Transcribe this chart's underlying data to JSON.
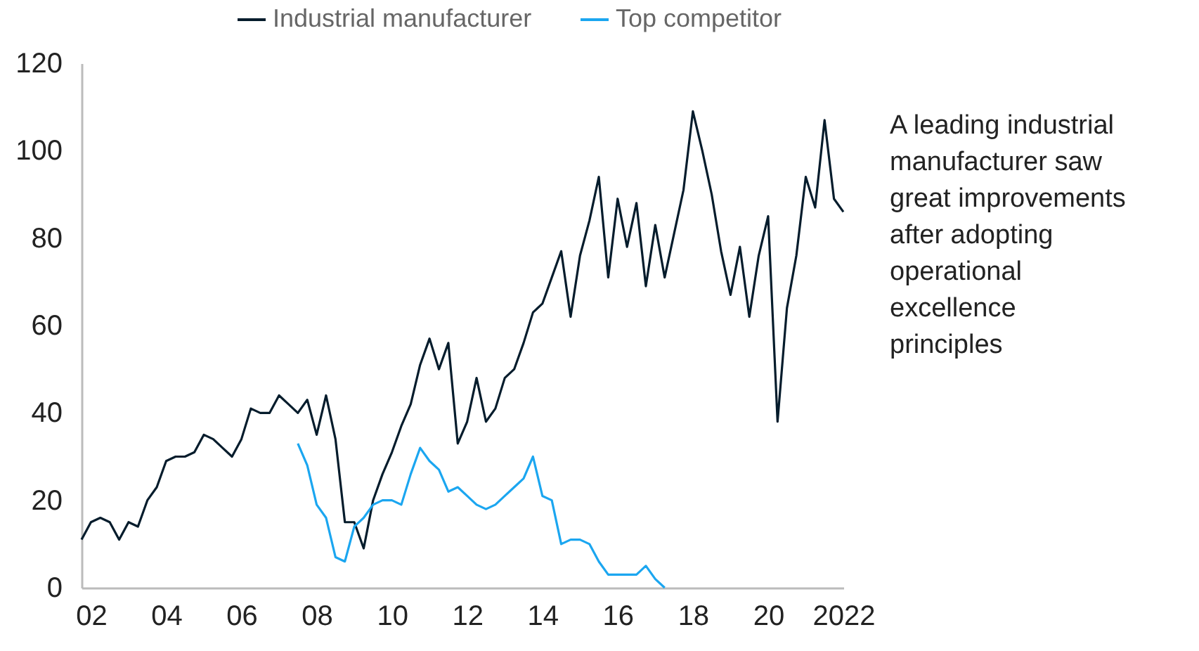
{
  "chart_data": {
    "type": "line",
    "xlim": [
      2001.75,
      2022
    ],
    "ylim": [
      0,
      120
    ],
    "yticks": [
      0,
      20,
      40,
      60,
      80,
      100,
      120
    ],
    "xticks": [
      {
        "value": 2002,
        "label": "02"
      },
      {
        "value": 2004,
        "label": "04"
      },
      {
        "value": 2006,
        "label": "06"
      },
      {
        "value": 2008,
        "label": "08"
      },
      {
        "value": 2010,
        "label": "10"
      },
      {
        "value": 2012,
        "label": "12"
      },
      {
        "value": 2014,
        "label": "14"
      },
      {
        "value": 2016,
        "label": "16"
      },
      {
        "value": 2018,
        "label": "18"
      },
      {
        "value": 2020,
        "label": "20"
      },
      {
        "value": 2022,
        "label": "2022"
      }
    ],
    "grid": false,
    "legend": "top",
    "marker": "none",
    "line_style": "solid",
    "annotations": [
      "A leading industrial manufacturer saw great improvements after adopting operational excellence principles"
    ],
    "series": [
      {
        "name": "Industrial manufacturer",
        "color": "#051c2c",
        "x": [
          2001.75,
          2002,
          2002.25,
          2002.5,
          2002.75,
          2003,
          2003.25,
          2003.5,
          2003.75,
          2004,
          2004.25,
          2004.5,
          2004.75,
          2005,
          2005.25,
          2005.5,
          2005.75,
          2006,
          2006.25,
          2006.5,
          2006.75,
          2007,
          2007.25,
          2007.5,
          2007.75,
          2008,
          2008.25,
          2008.5,
          2008.75,
          2009,
          2009.25,
          2009.5,
          2009.75,
          2010,
          2010.25,
          2010.5,
          2010.75,
          2011,
          2011.25,
          2011.5,
          2011.75,
          2012,
          2012.25,
          2012.5,
          2012.75,
          2013,
          2013.25,
          2013.5,
          2013.75,
          2014,
          2014.25,
          2014.5,
          2014.75,
          2015,
          2015.25,
          2015.5,
          2015.75,
          2016,
          2016.25,
          2016.5,
          2016.75,
          2017,
          2017.25,
          2017.5,
          2017.75,
          2018,
          2018.25,
          2018.5,
          2018.75,
          2019,
          2019.25,
          2019.5,
          2019.75,
          2020,
          2020.25,
          2020.5,
          2020.75,
          2021,
          2021.25,
          2021.5,
          2021.75,
          2022
        ],
        "values": [
          11,
          15,
          16,
          15,
          11,
          15,
          14,
          20,
          23,
          29,
          30,
          30,
          31,
          35,
          34,
          32,
          30,
          34,
          41,
          40,
          40,
          44,
          42,
          40,
          43,
          35,
          44,
          34,
          15,
          15,
          9,
          20,
          26,
          31,
          37,
          42,
          51,
          57,
          50,
          56,
          33,
          38,
          48,
          38,
          41,
          48,
          50,
          56,
          63,
          65,
          71,
          77,
          62,
          76,
          84,
          94,
          71,
          89,
          78,
          88,
          69,
          83,
          71,
          81,
          91,
          109,
          100,
          90,
          77,
          67,
          78,
          62,
          76,
          85,
          38,
          64,
          76,
          94,
          87,
          107,
          89,
          86
        ]
      },
      {
        "name": "Top competitor",
        "color": "#1ba6f0",
        "x": [
          2007.5,
          2007.75,
          2008,
          2008.25,
          2008.5,
          2008.75,
          2009,
          2009.25,
          2009.5,
          2009.75,
          2010,
          2010.25,
          2010.5,
          2010.75,
          2011,
          2011.25,
          2011.5,
          2011.75,
          2012,
          2012.25,
          2012.5,
          2012.75,
          2013,
          2013.25,
          2013.5,
          2013.75,
          2014,
          2014.25,
          2014.5,
          2014.75,
          2015,
          2015.25,
          2015.5,
          2015.75,
          2016,
          2016.25,
          2016.5,
          2016.75,
          2017,
          2017.25
        ],
        "values": [
          33,
          28,
          19,
          16,
          7,
          6,
          14,
          16,
          19,
          20,
          20,
          19,
          26,
          32,
          29,
          27,
          22,
          23,
          21,
          19,
          18,
          19,
          21,
          23,
          25,
          30,
          21,
          20,
          10,
          11,
          11,
          10,
          6,
          3,
          3,
          3,
          3,
          5,
          2,
          0
        ]
      }
    ]
  }
}
